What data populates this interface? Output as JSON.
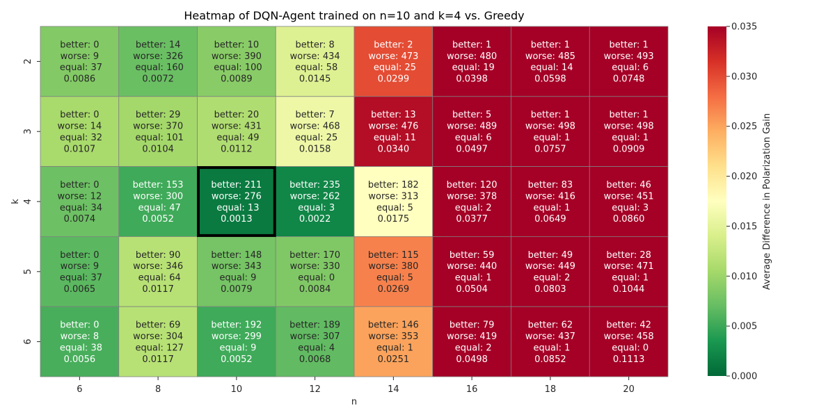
{
  "chart_data": {
    "type": "heatmap",
    "title": "Heatmap of DQN-Agent trained on n=10 and k=4 vs. Greedy",
    "xlabel": "n",
    "ylabel": "k",
    "x_categories": [
      "6",
      "8",
      "10",
      "12",
      "14",
      "16",
      "18",
      "20"
    ],
    "y_categories": [
      "2",
      "3",
      "4",
      "5",
      "6"
    ],
    "colorbar": {
      "label": "Average Difference in Polarization Gain",
      "range": [
        0.0,
        0.035
      ],
      "ticks": [
        "0.000",
        "0.005",
        "0.010",
        "0.015",
        "0.020",
        "0.025",
        "0.030",
        "0.035"
      ],
      "colormap": "RdYlGn_r"
    },
    "highlight": {
      "n": "10",
      "k": "4"
    },
    "rows": [
      {
        "k": "2",
        "cells": [
          {
            "better": 0,
            "worse": 9,
            "equal": 37,
            "value": "0.0086"
          },
          {
            "better": 14,
            "worse": 326,
            "equal": 160,
            "value": "0.0072"
          },
          {
            "better": 10,
            "worse": 390,
            "equal": 100,
            "value": "0.0089"
          },
          {
            "better": 8,
            "worse": 434,
            "equal": 58,
            "value": "0.0145"
          },
          {
            "better": 2,
            "worse": 473,
            "equal": 25,
            "value": "0.0299"
          },
          {
            "better": 1,
            "worse": 480,
            "equal": 19,
            "value": "0.0398"
          },
          {
            "better": 1,
            "worse": 485,
            "equal": 14,
            "value": "0.0598"
          },
          {
            "better": 1,
            "worse": 493,
            "equal": 6,
            "value": "0.0748"
          }
        ]
      },
      {
        "k": "3",
        "cells": [
          {
            "better": 0,
            "worse": 14,
            "equal": 32,
            "value": "0.0107"
          },
          {
            "better": 29,
            "worse": 370,
            "equal": 101,
            "value": "0.0104"
          },
          {
            "better": 20,
            "worse": 431,
            "equal": 49,
            "value": "0.0112"
          },
          {
            "better": 7,
            "worse": 468,
            "equal": 25,
            "value": "0.0158"
          },
          {
            "better": 13,
            "worse": 476,
            "equal": 11,
            "value": "0.0340"
          },
          {
            "better": 5,
            "worse": 489,
            "equal": 6,
            "value": "0.0497"
          },
          {
            "better": 1,
            "worse": 498,
            "equal": 1,
            "value": "0.0757"
          },
          {
            "better": 1,
            "worse": 498,
            "equal": 1,
            "value": "0.0909"
          }
        ]
      },
      {
        "k": "4",
        "cells": [
          {
            "better": 0,
            "worse": 12,
            "equal": 34,
            "value": "0.0074"
          },
          {
            "better": 153,
            "worse": 300,
            "equal": 47,
            "value": "0.0052"
          },
          {
            "better": 211,
            "worse": 276,
            "equal": 13,
            "value": "0.0013"
          },
          {
            "better": 235,
            "worse": 262,
            "equal": 3,
            "value": "0.0022"
          },
          {
            "better": 182,
            "worse": 313,
            "equal": 5,
            "value": "0.0175"
          },
          {
            "better": 120,
            "worse": 378,
            "equal": 2,
            "value": "0.0377"
          },
          {
            "better": 83,
            "worse": 416,
            "equal": 1,
            "value": "0.0649"
          },
          {
            "better": 46,
            "worse": 451,
            "equal": 3,
            "value": "0.0860"
          }
        ]
      },
      {
        "k": "5",
        "cells": [
          {
            "better": 0,
            "worse": 9,
            "equal": 37,
            "value": "0.0065"
          },
          {
            "better": 90,
            "worse": 346,
            "equal": 64,
            "value": "0.0117"
          },
          {
            "better": 148,
            "worse": 343,
            "equal": 9,
            "value": "0.0079"
          },
          {
            "better": 170,
            "worse": 330,
            "equal": 0,
            "value": "0.0084"
          },
          {
            "better": 115,
            "worse": 380,
            "equal": 5,
            "value": "0.0269"
          },
          {
            "better": 59,
            "worse": 440,
            "equal": 1,
            "value": "0.0504"
          },
          {
            "better": 49,
            "worse": 449,
            "equal": 2,
            "value": "0.0803"
          },
          {
            "better": 28,
            "worse": 471,
            "equal": 1,
            "value": "0.1044"
          }
        ]
      },
      {
        "k": "6",
        "cells": [
          {
            "better": 0,
            "worse": 8,
            "equal": 38,
            "value": "0.0056"
          },
          {
            "better": 69,
            "worse": 304,
            "equal": 127,
            "value": "0.0117"
          },
          {
            "better": 192,
            "worse": 299,
            "equal": 9,
            "value": "0.0052"
          },
          {
            "better": 189,
            "worse": 307,
            "equal": 4,
            "value": "0.0068"
          },
          {
            "better": 146,
            "worse": 353,
            "equal": 1,
            "value": "0.0251"
          },
          {
            "better": 79,
            "worse": 419,
            "equal": 2,
            "value": "0.0498"
          },
          {
            "better": 62,
            "worse": 437,
            "equal": 1,
            "value": "0.0852"
          },
          {
            "better": 42,
            "worse": 458,
            "equal": 0,
            "value": "0.1113"
          }
        ]
      }
    ]
  }
}
